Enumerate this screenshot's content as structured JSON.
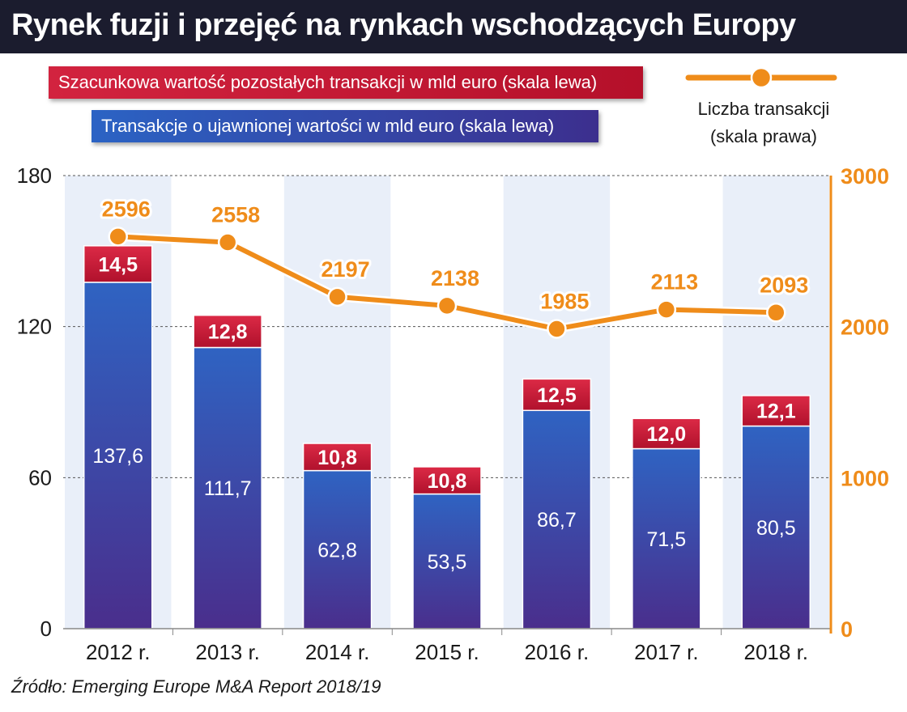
{
  "title": "Rynek fuzji i przejęć na rynkach wschodzących Europy",
  "legend": {
    "red_label": "Szacunkowa wartość pozostałych transakcji w mld euro (skala lewa)",
    "blue_label": "Transakcje o ujawnionej wartości w mld euro (skala lewa)",
    "line_label_1": "Liczba transakcji",
    "line_label_2": "(skala prawa)"
  },
  "source": "Źródło: Emerging Europe M&A Report 2018/19",
  "colors": {
    "red": "#c8183a",
    "blue_top": "#2f63c2",
    "blue_bottom": "#4a2e8c",
    "line": "#ef8c1a",
    "band": "#e9eff9"
  },
  "chart_data": {
    "type": "bar",
    "stacked": true,
    "categories": [
      "2012 r.",
      "2013 r.",
      "2014 r.",
      "2015 r.",
      "2016 r.",
      "2017 r.",
      "2018 r."
    ],
    "series": [
      {
        "name": "Transakcje o ujawnionej wartości w mld euro (skala lewa)",
        "axis": "left",
        "values": [
          137.6,
          111.7,
          62.8,
          53.5,
          86.7,
          71.5,
          80.5
        ],
        "labels": [
          "137,6",
          "111,7",
          "62,8",
          "53,5",
          "86,7",
          "71,5",
          "80,5"
        ]
      },
      {
        "name": "Szacunkowa wartość pozostałych transakcji w mld euro (skala lewa)",
        "axis": "left",
        "values": [
          14.5,
          12.8,
          10.8,
          10.8,
          12.5,
          12.0,
          12.1
        ],
        "labels": [
          "14,5",
          "12,8",
          "10,8",
          "10,8",
          "12,5",
          "12,0",
          "12,1"
        ]
      },
      {
        "name": "Liczba transakcji (skala prawa)",
        "axis": "right",
        "type": "line",
        "values": [
          2596,
          2558,
          2197,
          2138,
          1985,
          2113,
          2093
        ],
        "labels": [
          "2596",
          "2558",
          "2197",
          "2138",
          "1985",
          "2113",
          "2093"
        ]
      }
    ],
    "y_left": {
      "min": 0,
      "max": 180,
      "ticks": [
        0,
        60,
        120,
        180
      ],
      "tick_labels": [
        "0",
        "60",
        "120",
        "180"
      ]
    },
    "y_right": {
      "min": 0,
      "max": 3000,
      "ticks": [
        0,
        1000,
        2000,
        3000
      ],
      "tick_labels": [
        "0",
        "1000",
        "2000",
        "3000"
      ]
    },
    "grid": true
  }
}
